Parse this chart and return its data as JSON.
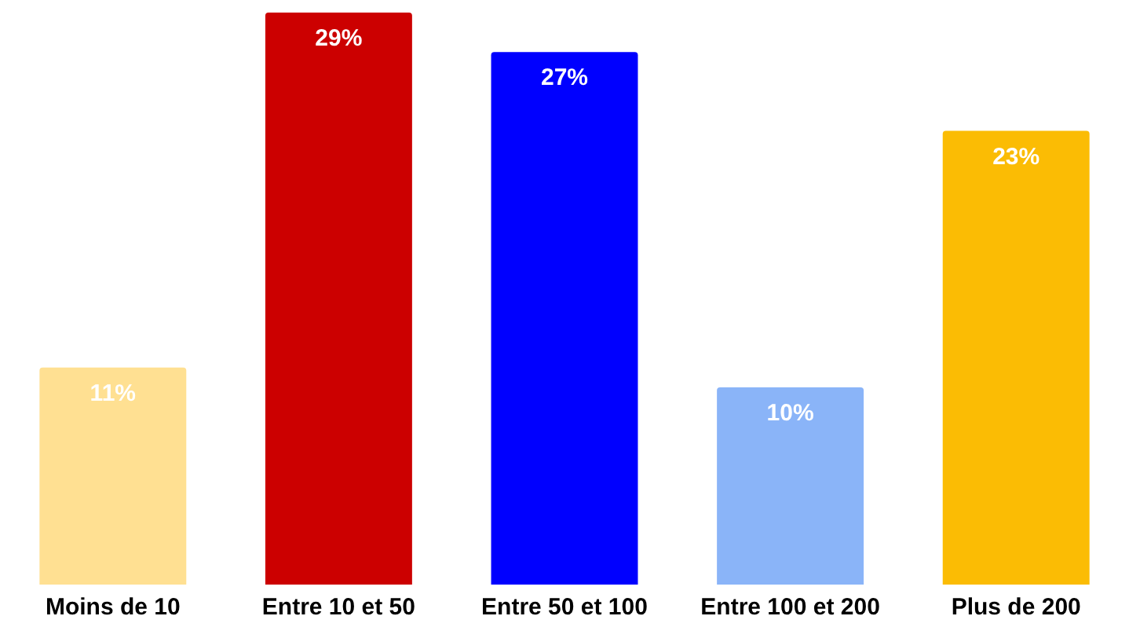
{
  "chart_data": {
    "type": "bar",
    "categories": [
      "Moins de 10",
      "Entre 10 et 50",
      "Entre 50 et 100",
      "Entre 100 et 200",
      "Plus de 200"
    ],
    "values": [
      11,
      29,
      27,
      10,
      23
    ],
    "value_labels": [
      "11%",
      "29%",
      "27%",
      "10%",
      "23%"
    ],
    "colors": [
      "#ffe092",
      "#cc0000",
      "#0000ff",
      "#8ab4f8",
      "#fbbc04"
    ],
    "grid": false,
    "legend": false,
    "tick_labels": "x"
  }
}
